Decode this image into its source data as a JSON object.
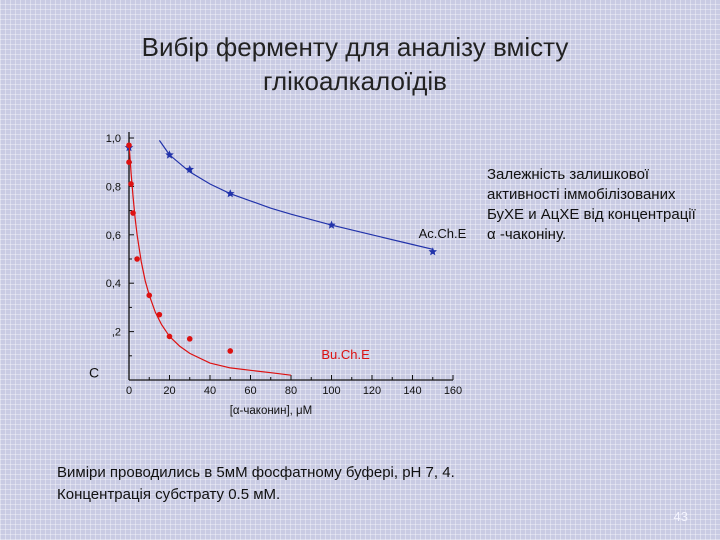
{
  "slide": {
    "title_line1": "Вибір ферменту для аналізу вмісту",
    "title_line2": "глікоалкалоїдів",
    "caption": "Залежність залишкової активності іммобілізованих БуХЕ и АцХЕ від концентрації α -чаконіну.",
    "footnote_line1": "Виміри проводились в 5мМ фосфатному буфері, рН 7, 4.",
    "footnote_line2": "Концентрація субстрату 0.5 мМ.",
    "page_number": "43"
  },
  "colors": {
    "ache": "#2233aa",
    "buche": "#dd1111",
    "axis": "#111111"
  },
  "chart_data": {
    "type": "scatter",
    "xlabel": "[α-чаконин], μM",
    "ylabel": "",
    "xlim": [
      0,
      160
    ],
    "ylim": [
      0,
      1.0
    ],
    "x_ticks": [
      0,
      20,
      40,
      60,
      80,
      100,
      120,
      140,
      160
    ],
    "x_tick_labels": [
      "0",
      "20",
      "40",
      "60",
      "80",
      "100",
      "120",
      "140",
      "160"
    ],
    "y_ticks": [
      0.2,
      0.4,
      0.6,
      0.8,
      1.0
    ],
    "y_tick_labels": [
      ",2",
      "0,4",
      "0,6",
      "0,8",
      "1,0"
    ],
    "y_partial_label": "С",
    "grid": false,
    "series": [
      {
        "name": "Ac.Ch.E",
        "marker": "star",
        "color_key": "ache",
        "points": [
          [
            0,
            0.96
          ],
          [
            20,
            0.93
          ],
          [
            30,
            0.87
          ],
          [
            50,
            0.77
          ],
          [
            100,
            0.64
          ],
          [
            150,
            0.53
          ]
        ],
        "fit_curve": [
          [
            15,
            0.99
          ],
          [
            20,
            0.93
          ],
          [
            30,
            0.86
          ],
          [
            40,
            0.81
          ],
          [
            50,
            0.77
          ],
          [
            60,
            0.74
          ],
          [
            70,
            0.71
          ],
          [
            80,
            0.685
          ],
          [
            100,
            0.64
          ],
          [
            120,
            0.6
          ],
          [
            140,
            0.56
          ],
          [
            150,
            0.54
          ]
        ]
      },
      {
        "name": "Bu.Ch.E",
        "marker": "circle",
        "color_key": "buche",
        "points": [
          [
            0,
            0.97
          ],
          [
            0,
            0.9
          ],
          [
            1,
            0.81
          ],
          [
            2,
            0.69
          ],
          [
            4,
            0.5
          ],
          [
            10,
            0.35
          ],
          [
            15,
            0.27
          ],
          [
            20,
            0.18
          ],
          [
            30,
            0.17
          ],
          [
            50,
            0.12
          ]
        ],
        "fit_curve": [
          [
            0,
            0.98
          ],
          [
            1,
            0.86
          ],
          [
            2,
            0.76
          ],
          [
            3,
            0.67
          ],
          [
            4,
            0.6
          ],
          [
            6,
            0.49
          ],
          [
            8,
            0.41
          ],
          [
            10,
            0.35
          ],
          [
            13,
            0.28
          ],
          [
            16,
            0.23
          ],
          [
            20,
            0.18
          ],
          [
            25,
            0.14
          ],
          [
            30,
            0.11
          ],
          [
            40,
            0.07
          ],
          [
            50,
            0.05
          ],
          [
            60,
            0.04
          ],
          [
            70,
            0.03
          ],
          [
            80,
            0.02
          ]
        ]
      }
    ]
  }
}
